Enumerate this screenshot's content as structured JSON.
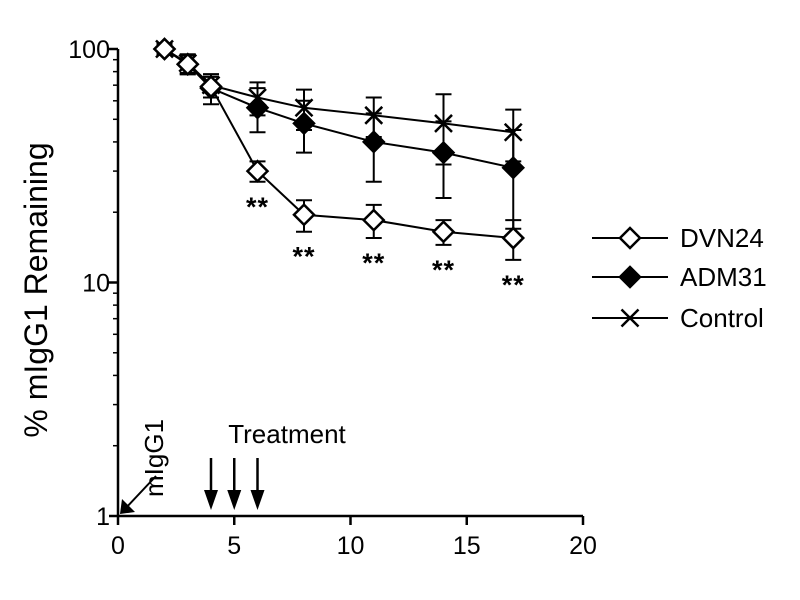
{
  "chart_data": {
    "type": "line",
    "title": "",
    "xlabel": "",
    "ylabel": "% mIgG1 Remaining",
    "xlim": [
      0,
      20
    ],
    "ylim": [
      1,
      100
    ],
    "yscale": "log",
    "xticks": [
      0,
      5,
      10,
      15,
      20
    ],
    "xtick_labels": [
      "0",
      "5",
      "10",
      "15",
      "20"
    ],
    "yticks": [
      1,
      10,
      100
    ],
    "ytick_labels": [
      "1",
      "10",
      "100"
    ],
    "grid": false,
    "legend_position": "right",
    "series": [
      {
        "name": "DVN24",
        "marker": "diamond-open",
        "color": "#000000",
        "points": [
          {
            "x": 2,
            "y": 100,
            "err": 5
          },
          {
            "x": 3,
            "y": 86,
            "err": 8
          },
          {
            "x": 4,
            "y": 69,
            "err": 7
          },
          {
            "x": 6,
            "y": 30,
            "err": 3
          },
          {
            "x": 8,
            "y": 19.5,
            "err": 3
          },
          {
            "x": 11,
            "y": 18.5,
            "err": 3
          },
          {
            "x": 14,
            "y": 16.5,
            "err": 2
          },
          {
            "x": 17,
            "y": 15.5,
            "err": 3
          }
        ]
      },
      {
        "name": "ADM31",
        "marker": "diamond-filled",
        "color": "#000000",
        "points": [
          {
            "x": 2,
            "y": 100,
            "err": 5
          },
          {
            "x": 3,
            "y": 86,
            "err": 8
          },
          {
            "x": 4,
            "y": 68,
            "err": 10
          },
          {
            "x": 6,
            "y": 56,
            "err": 12
          },
          {
            "x": 8,
            "y": 48,
            "err": 12
          },
          {
            "x": 11,
            "y": 40,
            "err": 13
          },
          {
            "x": 14,
            "y": 36,
            "err": 13
          },
          {
            "x": 17,
            "y": 31,
            "err": 14
          }
        ]
      },
      {
        "name": "Control",
        "marker": "x",
        "color": "#000000",
        "points": [
          {
            "x": 2,
            "y": 100,
            "err": 5
          },
          {
            "x": 3,
            "y": 87,
            "err": 8
          },
          {
            "x": 4,
            "y": 70,
            "err": 8
          },
          {
            "x": 6,
            "y": 62,
            "err": 10
          },
          {
            "x": 8,
            "y": 56,
            "err": 11
          },
          {
            "x": 11,
            "y": 52,
            "err": 10
          },
          {
            "x": 14,
            "y": 48,
            "err": 16
          },
          {
            "x": 17,
            "y": 44,
            "err": 11
          }
        ]
      }
    ],
    "significance": {
      "label": "**",
      "x": [
        6,
        8,
        11,
        14,
        17
      ]
    },
    "annotations": [
      {
        "text": "mIgG1",
        "arrow_to_x": 0,
        "arrow_to_y": 1
      },
      {
        "text": "Treatment",
        "arrows_at_x": [
          4,
          5,
          6
        ]
      }
    ]
  }
}
